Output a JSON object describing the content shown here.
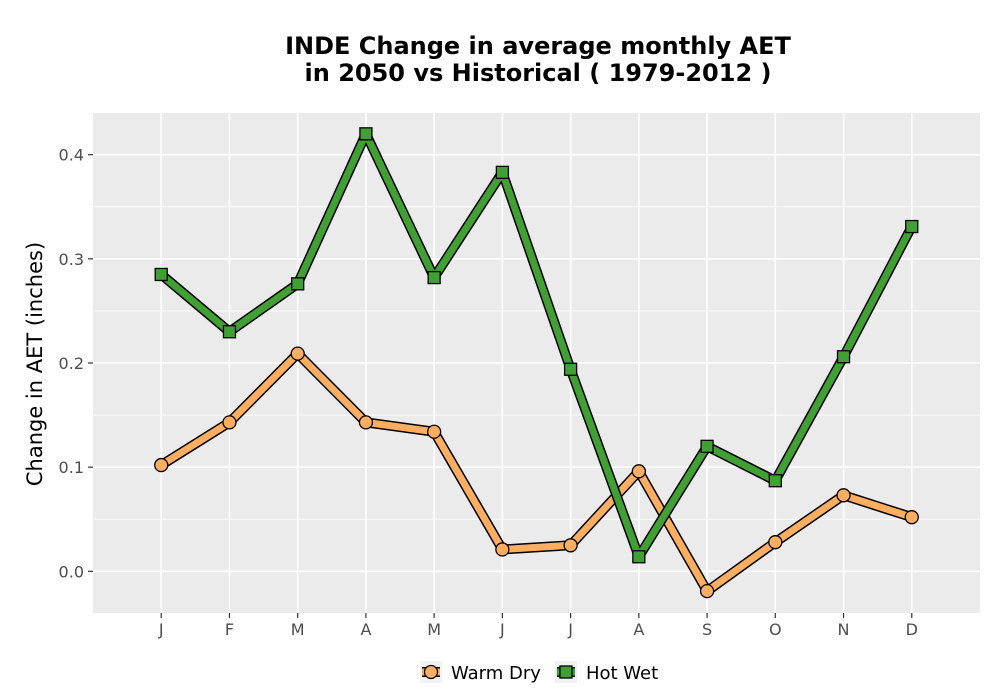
{
  "chart_data": {
    "type": "line",
    "title_line1": "INDE  Change in average monthly AET",
    "title_line2": "in 2050 vs Historical ( 1979-2012 )",
    "xlabel": "",
    "ylabel": "Change in AET (inches)",
    "categories": [
      "J",
      "F",
      "M",
      "A",
      "M",
      "J",
      "J",
      "A",
      "S",
      "O",
      "N",
      "D"
    ],
    "yticks": [
      0.0,
      0.1,
      0.2,
      0.3,
      0.4
    ],
    "ytick_labels": [
      "0.0",
      "0.1",
      "0.2",
      "0.3",
      "0.4"
    ],
    "ylim": [
      -0.04,
      0.44
    ],
    "grid": true,
    "legend_position": "bottom",
    "series": [
      {
        "name": "Warm Dry",
        "color": "#fdae61",
        "marker": "circle",
        "values": [
          0.102,
          0.143,
          0.209,
          0.143,
          0.134,
          0.021,
          0.025,
          0.096,
          -0.019,
          0.028,
          0.073,
          0.052
        ]
      },
      {
        "name": "Hot Wet",
        "color": "#41a034",
        "marker": "square",
        "values": [
          0.285,
          0.23,
          0.276,
          0.42,
          0.282,
          0.383,
          0.194,
          0.014,
          0.12,
          0.087,
          0.206,
          0.331
        ]
      }
    ]
  }
}
